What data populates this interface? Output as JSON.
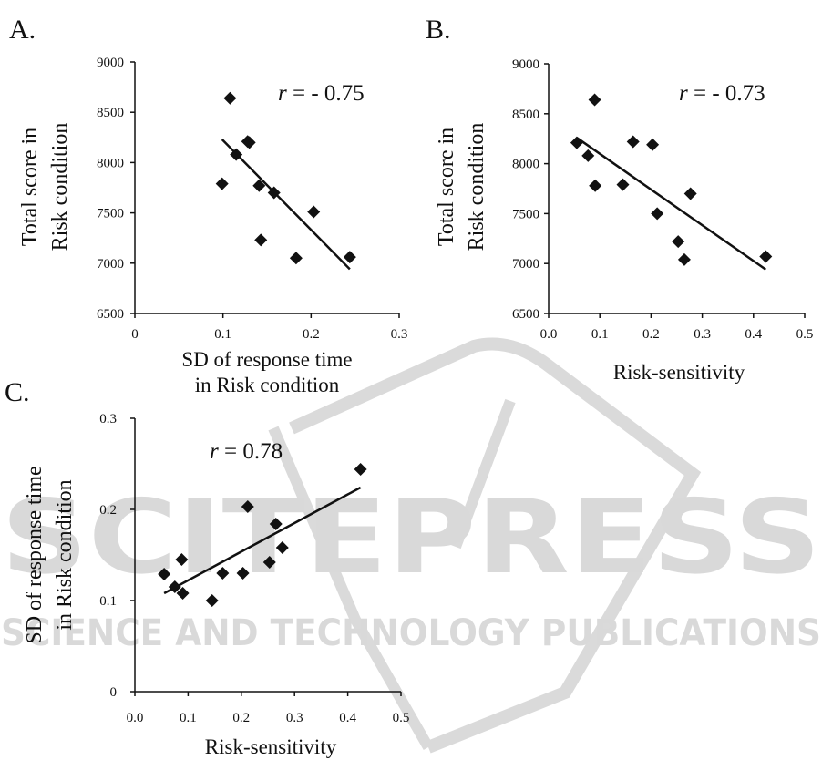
{
  "watermark": {
    "line1": "SCITEPRESS",
    "line2": "SCIENCE AND TECHNOLOGY PUBLICATIONS"
  },
  "chart_data": [
    {
      "panel": "A.",
      "type": "scatter",
      "ylabel_lines": [
        "Total score in",
        "Risk condition"
      ],
      "xlabel_lines": [
        "SD of response time",
        "in Risk condition"
      ],
      "xlim": [
        0,
        0.3
      ],
      "ylim": [
        6500,
        9000
      ],
      "xticks": [
        "0",
        "0.1",
        "0.2",
        "0.3"
      ],
      "yticks": [
        "6500",
        "7000",
        "7500",
        "8000",
        "8500",
        "9000"
      ],
      "annotation": {
        "prefix": "r",
        "text": " = - 0.75"
      },
      "points": [
        [
          0.099,
          7790
        ],
        [
          0.108,
          8640
        ],
        [
          0.115,
          8080
        ],
        [
          0.128,
          8210
        ],
        [
          0.13,
          8200
        ],
        [
          0.141,
          7770
        ],
        [
          0.143,
          7230
        ],
        [
          0.158,
          7700
        ],
        [
          0.183,
          7050
        ],
        [
          0.203,
          7510
        ],
        [
          0.244,
          7060
        ]
      ],
      "fit": [
        [
          0.099,
          8230
        ],
        [
          0.244,
          6940
        ]
      ]
    },
    {
      "panel": "B.",
      "type": "scatter",
      "ylabel_lines": [
        "Total score in",
        "Risk condition"
      ],
      "xlabel_lines": [
        "Risk-sensitivity"
      ],
      "xlim": [
        0,
        0.5
      ],
      "ylim": [
        6500,
        9000
      ],
      "xticks": [
        "0.0",
        "0.1",
        "0.2",
        "0.3",
        "0.4",
        "0.5"
      ],
      "yticks": [
        "6500",
        "7000",
        "7500",
        "8000",
        "8500",
        "9000"
      ],
      "annotation": {
        "prefix": "r",
        "text": " = - 0.73"
      },
      "points": [
        [
          0.055,
          8210
        ],
        [
          0.077,
          8080
        ],
        [
          0.09,
          8640
        ],
        [
          0.091,
          7780
        ],
        [
          0.145,
          7790
        ],
        [
          0.165,
          8220
        ],
        [
          0.203,
          8190
        ],
        [
          0.212,
          7500
        ],
        [
          0.253,
          7220
        ],
        [
          0.265,
          7040
        ],
        [
          0.277,
          7700
        ],
        [
          0.424,
          7070
        ]
      ],
      "fit": [
        [
          0.055,
          8260
        ],
        [
          0.424,
          6940
        ]
      ]
    },
    {
      "panel": "C.",
      "type": "scatter",
      "ylabel_lines": [
        "SD of response time",
        "in Risk condition"
      ],
      "xlabel_lines": [
        "Risk-sensitivity"
      ],
      "xlim": [
        0,
        0.5
      ],
      "ylim": [
        0,
        0.3
      ],
      "xticks": [
        "0.0",
        "0.1",
        "0.2",
        "0.3",
        "0.4",
        "0.5"
      ],
      "yticks": [
        "0",
        "0.1",
        "0.2",
        "0.3"
      ],
      "annotation": {
        "prefix": "r",
        "text": " = 0.78"
      },
      "points": [
        [
          0.055,
          0.129
        ],
        [
          0.075,
          0.115
        ],
        [
          0.088,
          0.145
        ],
        [
          0.09,
          0.108
        ],
        [
          0.145,
          0.1
        ],
        [
          0.165,
          0.13
        ],
        [
          0.203,
          0.13
        ],
        [
          0.212,
          0.203
        ],
        [
          0.253,
          0.142
        ],
        [
          0.265,
          0.184
        ],
        [
          0.277,
          0.158
        ],
        [
          0.424,
          0.244
        ]
      ],
      "fit": [
        [
          0.055,
          0.108
        ],
        [
          0.424,
          0.224
        ]
      ]
    }
  ]
}
